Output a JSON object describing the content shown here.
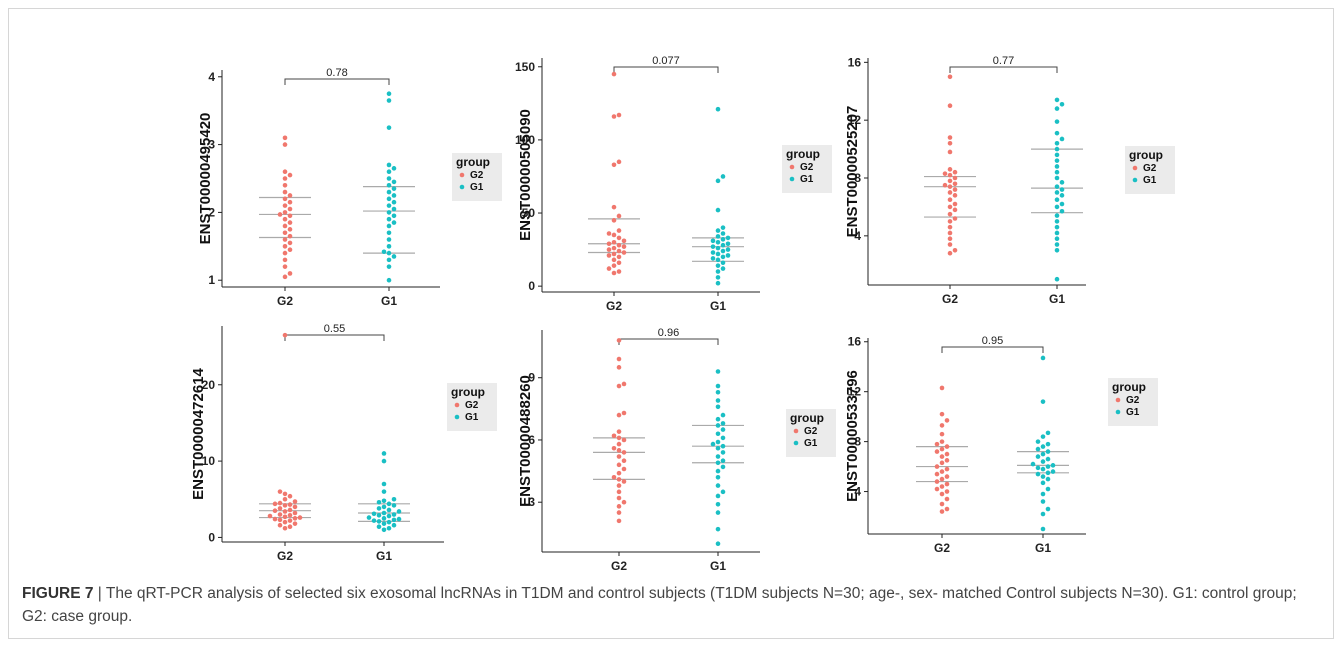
{
  "caption": {
    "label": "FIGURE 7",
    "separator": "|",
    "text": "The qRT-PCR analysis of selected six exosomal lncRNAs in T1DM and control subjects (T1DM subjects N=30; age-, sex- matched Control subjects N=30). G1: control group; G2: case group."
  },
  "colors": {
    "G2": "#f0776d",
    "G1": "#1abfc4",
    "summary_line": "#aaaaaa",
    "legend_bg": "#ebebeb"
  },
  "chart_data": [
    {
      "type": "scatter",
      "ylabel": "ENST00000495420",
      "categories": [
        "G2",
        "G1"
      ],
      "yticks": [
        1,
        2,
        3,
        4
      ],
      "ylim": [
        0.9,
        4.1
      ],
      "pvalue": "0.78",
      "legend": {
        "title": "group",
        "entries": [
          "G2",
          "G1"
        ],
        "placement": "right"
      },
      "series": [
        {
          "name": "G2",
          "quartiles": [
            1.63,
            1.97,
            2.22
          ],
          "values": [
            3.1,
            3.0,
            2.6,
            2.55,
            2.5,
            2.4,
            2.3,
            2.25,
            2.2,
            2.15,
            2.1,
            2.05,
            2.0,
            1.97,
            1.95,
            1.9,
            1.85,
            1.8,
            1.75,
            1.7,
            1.65,
            1.6,
            1.55,
            1.5,
            1.45,
            1.4,
            1.3,
            1.2,
            1.1,
            1.05
          ]
        },
        {
          "name": "G1",
          "quartiles": [
            1.4,
            2.02,
            2.38
          ],
          "values": [
            3.75,
            3.65,
            3.25,
            2.7,
            2.65,
            2.6,
            2.5,
            2.45,
            2.4,
            2.35,
            2.3,
            2.25,
            2.2,
            2.15,
            2.1,
            2.05,
            2.0,
            1.95,
            1.9,
            1.85,
            1.8,
            1.7,
            1.6,
            1.5,
            1.42,
            1.4,
            1.35,
            1.3,
            1.2,
            1.0
          ]
        }
      ]
    },
    {
      "type": "scatter",
      "ylabel": "ENST00000505090",
      "categories": [
        "G2",
        "G1"
      ],
      "yticks": [
        0,
        50,
        100,
        150
      ],
      "ylim": [
        -4,
        156
      ],
      "pvalue": "0.077",
      "legend": {
        "title": "group",
        "entries": [
          "G2",
          "G1"
        ],
        "placement": "right"
      },
      "series": [
        {
          "name": "G2",
          "quartiles": [
            23,
            29,
            46
          ],
          "values": [
            145,
            117,
            116,
            85,
            83,
            54,
            48,
            45,
            38,
            36,
            35,
            33,
            31,
            30,
            29,
            28,
            27,
            26,
            25,
            24,
            23,
            22,
            21,
            20,
            18,
            16,
            14,
            12,
            10,
            9
          ]
        },
        {
          "name": "G1",
          "quartiles": [
            17,
            27,
            33
          ],
          "values": [
            121,
            75,
            72,
            52,
            40,
            38,
            36,
            34,
            33,
            32,
            31,
            30,
            29,
            28,
            27,
            26,
            25,
            24,
            23,
            22,
            21,
            20,
            19,
            18,
            16,
            14,
            12,
            10,
            6,
            2
          ]
        }
      ]
    },
    {
      "type": "scatter",
      "ylabel": "ENST00000525207",
      "categories": [
        "G2",
        "G1"
      ],
      "yticks": [
        4,
        8,
        12,
        16
      ],
      "ylim": [
        0.6,
        16.3
      ],
      "pvalue": "0.77",
      "legend": {
        "title": "group",
        "entries": [
          "G2",
          "G1"
        ],
        "placement": "right"
      },
      "series": [
        {
          "name": "G2",
          "quartiles": [
            5.3,
            7.4,
            8.1
          ],
          "values": [
            15.0,
            13.0,
            10.8,
            10.4,
            9.8,
            8.6,
            8.4,
            8.3,
            8.2,
            8.0,
            7.8,
            7.6,
            7.5,
            7.4,
            7.2,
            7.0,
            6.8,
            6.5,
            6.2,
            6.0,
            5.8,
            5.5,
            5.2,
            5.0,
            4.6,
            4.2,
            3.8,
            3.4,
            3.0,
            2.8
          ]
        },
        {
          "name": "G1",
          "quartiles": [
            5.6,
            7.3,
            10.0
          ],
          "values": [
            13.4,
            13.1,
            12.8,
            11.9,
            11.1,
            10.7,
            10.4,
            10.0,
            9.6,
            9.2,
            8.8,
            8.4,
            8.0,
            7.7,
            7.4,
            7.2,
            7.0,
            6.8,
            6.5,
            6.2,
            6.0,
            5.7,
            5.4,
            5.0,
            4.6,
            4.2,
            3.8,
            3.4,
            3.0,
            1.0
          ]
        }
      ]
    },
    {
      "type": "scatter",
      "ylabel": "ENST00000472614",
      "categories": [
        "G2",
        "G1"
      ],
      "yticks": [
        0,
        10,
        20
      ],
      "ylim": [
        -0.6,
        27.7
      ],
      "pvalue": "0.55",
      "legend": {
        "title": "group",
        "entries": [
          "G2",
          "G1"
        ],
        "placement": "right"
      },
      "series": [
        {
          "name": "G2",
          "quartiles": [
            2.6,
            3.5,
            4.4
          ],
          "values": [
            26.5,
            6.0,
            5.7,
            5.4,
            5.0,
            4.7,
            4.5,
            4.4,
            4.3,
            4.2,
            4.0,
            3.8,
            3.6,
            3.5,
            3.4,
            3.2,
            3.0,
            2.9,
            2.8,
            2.7,
            2.6,
            2.5,
            2.4,
            2.3,
            2.2,
            2.0,
            1.8,
            1.6,
            1.4,
            1.2
          ]
        },
        {
          "name": "G1",
          "quartiles": [
            2.1,
            3.2,
            4.4
          ],
          "values": [
            11.0,
            10.0,
            7.0,
            6.0,
            5.0,
            4.8,
            4.6,
            4.4,
            4.2,
            4.0,
            3.8,
            3.6,
            3.4,
            3.2,
            3.1,
            3.0,
            2.9,
            2.8,
            2.6,
            2.5,
            2.4,
            2.3,
            2.2,
            2.1,
            2.0,
            1.8,
            1.6,
            1.4,
            1.2,
            1.0
          ]
        }
      ]
    },
    {
      "type": "scatter",
      "ylabel": "ENST00000488260",
      "categories": [
        "G2",
        "G1"
      ],
      "yticks": [
        3,
        6,
        9
      ],
      "ylim": [
        0.6,
        11.3
      ],
      "pvalue": "0.96",
      "legend": {
        "title": "group",
        "entries": [
          "G2",
          "G1"
        ],
        "placement": "right"
      },
      "series": [
        {
          "name": "G2",
          "quartiles": [
            4.1,
            5.4,
            6.1
          ],
          "values": [
            10.8,
            9.9,
            9.5,
            8.7,
            8.6,
            7.3,
            7.2,
            6.4,
            6.2,
            6.1,
            6.0,
            5.8,
            5.6,
            5.5,
            5.4,
            5.2,
            5.0,
            4.8,
            4.6,
            4.4,
            4.2,
            4.1,
            4.0,
            3.8,
            3.5,
            3.2,
            3.0,
            2.8,
            2.5,
            2.1
          ]
        },
        {
          "name": "G1",
          "quartiles": [
            4.9,
            5.7,
            6.7
          ],
          "values": [
            9.3,
            8.6,
            8.3,
            7.9,
            7.6,
            7.2,
            7.0,
            6.8,
            6.7,
            6.5,
            6.3,
            6.1,
            5.9,
            5.8,
            5.7,
            5.6,
            5.4,
            5.2,
            5.0,
            4.9,
            4.7,
            4.5,
            4.2,
            3.8,
            3.5,
            3.3,
            2.9,
            2.5,
            1.7,
            1.0
          ]
        }
      ]
    },
    {
      "type": "scatter",
      "ylabel": "ENST00000533796",
      "categories": [
        "G2",
        "G1"
      ],
      "yticks": [
        4,
        8,
        12,
        16
      ],
      "ylim": [
        0.6,
        16.3
      ],
      "pvalue": "0.95",
      "legend": {
        "title": "group",
        "entries": [
          "G2",
          "G1"
        ],
        "placement": "right"
      },
      "series": [
        {
          "name": "G2",
          "quartiles": [
            4.8,
            6.0,
            7.6
          ],
          "values": [
            12.3,
            10.2,
            9.7,
            9.3,
            8.6,
            8.0,
            7.8,
            7.6,
            7.4,
            7.2,
            7.0,
            6.8,
            6.5,
            6.3,
            6.0,
            5.8,
            5.6,
            5.4,
            5.2,
            5.0,
            4.8,
            4.6,
            4.4,
            4.2,
            4.0,
            3.8,
            3.4,
            3.0,
            2.6,
            2.4
          ]
        },
        {
          "name": "G1",
          "quartiles": [
            5.5,
            6.1,
            7.2
          ],
          "values": [
            14.7,
            11.2,
            8.7,
            8.4,
            8.0,
            7.8,
            7.6,
            7.4,
            7.2,
            7.0,
            6.8,
            6.6,
            6.4,
            6.2,
            6.1,
            6.0,
            5.9,
            5.8,
            5.6,
            5.5,
            5.4,
            5.2,
            5.0,
            4.7,
            4.2,
            3.8,
            3.2,
            2.6,
            2.2,
            1.0
          ]
        }
      ]
    }
  ]
}
